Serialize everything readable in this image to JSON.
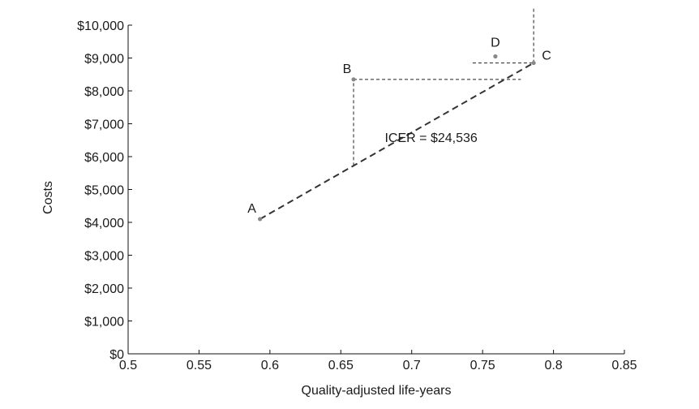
{
  "chart_data": {
    "type": "scatter",
    "title": "",
    "xlabel": "Quality-adjusted life-years",
    "ylabel": "Costs",
    "xlim": [
      0.5,
      0.85
    ],
    "ylim": [
      0,
      10000
    ],
    "x_ticks": [
      0.5,
      0.55,
      0.6,
      0.65,
      0.7,
      0.75,
      0.8,
      0.85
    ],
    "x_tick_labels": [
      "0.5",
      "0.55",
      "0.6",
      "0.65",
      "0.7",
      "0.75",
      "0.8",
      "0.85"
    ],
    "y_ticks": [
      0,
      1000,
      2000,
      3000,
      4000,
      5000,
      6000,
      7000,
      8000,
      9000,
      10000
    ],
    "y_tick_labels": [
      "$0",
      "$1,000",
      "$2,000",
      "$3,000",
      "$4,000",
      "$5,000",
      "$6,000",
      "$7,000",
      "$8,000",
      "$9,000",
      "$10,000"
    ],
    "grid": false,
    "points": [
      {
        "label": "A",
        "x": 0.593,
        "y": 4100
      },
      {
        "label": "B",
        "x": 0.659,
        "y": 8350
      },
      {
        "label": "C",
        "x": 0.786,
        "y": 8850
      },
      {
        "label": "D",
        "x": 0.759,
        "y": 9050
      }
    ],
    "frontier": {
      "from": "A",
      "to": "C"
    },
    "guides": [
      {
        "kind": "vertical",
        "x": 0.659,
        "y_from": 5720,
        "y_to": 8350
      },
      {
        "kind": "horizontal",
        "y": 8350,
        "x_from": 0.659,
        "x_to": 0.777
      },
      {
        "kind": "horizontal",
        "y": 8850,
        "x_from": 0.743,
        "x_to": 0.786
      },
      {
        "kind": "vertical",
        "x": 0.786,
        "y_from": 8850,
        "y_to": 10500
      }
    ],
    "annotations": [
      {
        "text": "ICER = $24,536",
        "x": 0.681,
        "y": 6450
      }
    ]
  }
}
